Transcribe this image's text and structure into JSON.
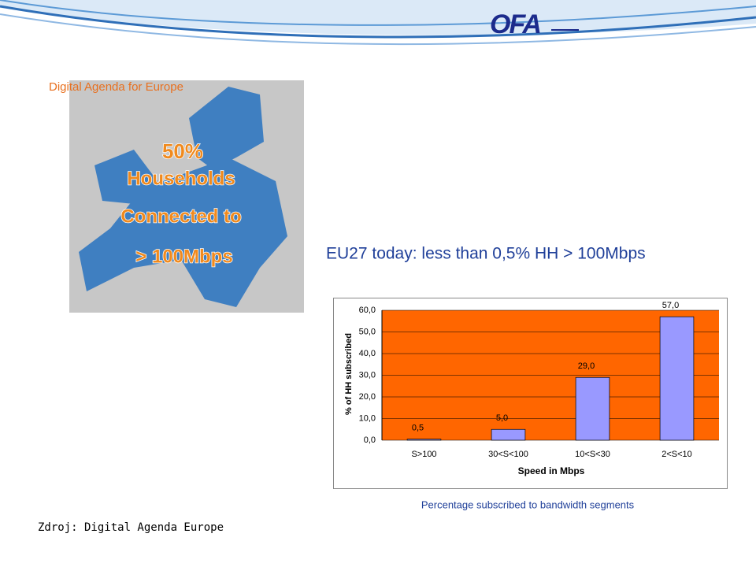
{
  "logo": "OFA",
  "map_caption": "Digital Agenda for Europe",
  "map_overlay": [
    "50%",
    "Households",
    "Connected to",
    "> 100Mbps"
  ],
  "headline": "EU27 today: less than 0,5% HH > 100Mbps",
  "chart_data": {
    "type": "bar",
    "categories": [
      "S>100",
      "30<S<100",
      "10<S<30",
      "2<S<10"
    ],
    "values": [
      0.5,
      5,
      29,
      57
    ],
    "value_labels": [
      "0,5",
      "5,0",
      "29,0",
      "57,0"
    ],
    "color": "#9999ff",
    "plot_background": "#ff6600",
    "ylim": [
      0,
      60
    ],
    "yticks": [
      {
        "value": 0,
        "label": "0,0"
      },
      {
        "value": 10,
        "label": "10,0"
      },
      {
        "value": 20,
        "label": "20,0"
      },
      {
        "value": 30,
        "label": "30,0"
      },
      {
        "value": 40,
        "label": "40,0"
      },
      {
        "value": 50,
        "label": "50,0"
      },
      {
        "value": 60,
        "label": "60,0"
      }
    ],
    "grid": true,
    "ylabel": "% of HH subscribed",
    "xlabel": "Speed in Mbps",
    "caption": "Percentage subscribed to bandwidth segments"
  },
  "source": "Zdroj: Digital Agenda Europe"
}
